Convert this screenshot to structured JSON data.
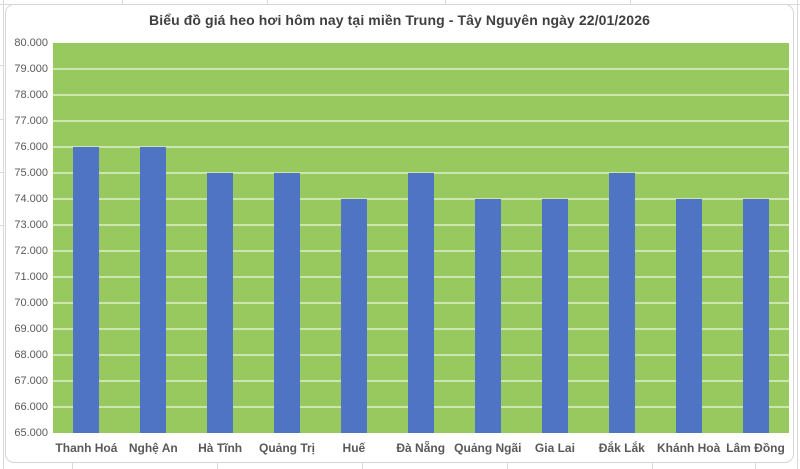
{
  "chart": {
    "title": "Biểu đồ giá heo hơi hôm nay tại miền Trung - Tây Nguyên ngày 22/01/2026"
  },
  "chart_data": {
    "type": "bar",
    "title": "Biểu đồ giá heo hơi hôm nay tại miền Trung - Tây Nguyên ngày 22/01/2026",
    "categories": [
      "Thanh Hoá",
      "Nghệ An",
      "Hà Tĩnh",
      "Quảng Trị",
      "Huế",
      "Đà Nẵng",
      "Quảng Ngãi",
      "Gia Lai",
      "Đắk Lắk",
      "Khánh Hoà",
      "Lâm Đồng"
    ],
    "values": [
      76000,
      76000,
      75000,
      75000,
      74000,
      75000,
      74000,
      74000,
      75000,
      74000,
      74000
    ],
    "xlabel": "",
    "ylabel": "",
    "ylim": [
      65000,
      80000
    ],
    "ytick_step": 1000,
    "ytick_labels_top_to_bottom": [
      "80.000",
      "79.000",
      "78.000",
      "77.000",
      "76.000",
      "75.000",
      "74.000",
      "73.000",
      "72.000",
      "71.000",
      "70.000",
      "69.000",
      "68.000",
      "67.000",
      "66.000",
      "65.000"
    ],
    "grid": "horizontal-major-on",
    "legend": "none",
    "colors": {
      "bar": "#4F74C4",
      "plot_background": "#98C95E",
      "gridline": "rgba(255,255,255,0.5)",
      "title_text": "#3f3f3f",
      "axis_text": "#595959",
      "chart_border": "#d6d6d6"
    }
  }
}
